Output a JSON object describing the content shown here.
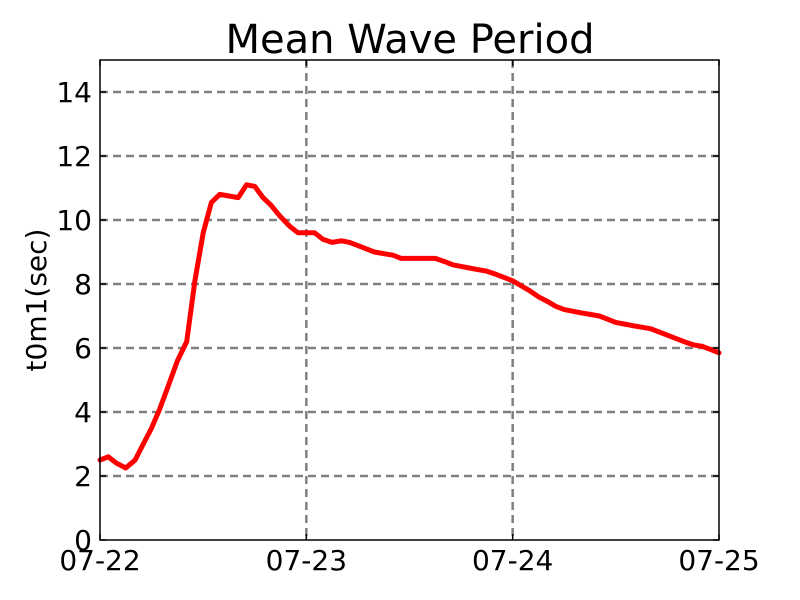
{
  "chart_data": {
    "type": "line",
    "title": "Mean Wave Period",
    "ylabel": "t0m1(sec)",
    "xlabel": "",
    "x_tick_labels": [
      "07-22",
      "07-23",
      "07-24",
      "07-25"
    ],
    "x_ticks": [
      0,
      1,
      2,
      3
    ],
    "y_tick_labels": [
      "0",
      "2",
      "4",
      "6",
      "8",
      "10",
      "12",
      "14"
    ],
    "y_ticks": [
      0,
      2,
      4,
      6,
      8,
      10,
      12,
      14
    ],
    "xlim": [
      0,
      3
    ],
    "ylim": [
      0,
      15
    ],
    "grid": true,
    "series": [
      {
        "color": "#ff0000",
        "x": [
          0.0,
          0.04,
          0.08,
          0.125,
          0.17,
          0.21,
          0.25,
          0.29,
          0.33,
          0.375,
          0.42,
          0.46,
          0.5,
          0.54,
          0.58,
          0.625,
          0.67,
          0.71,
          0.75,
          0.79,
          0.83,
          0.875,
          0.92,
          0.96,
          1.0,
          1.04,
          1.08,
          1.125,
          1.17,
          1.21,
          1.25,
          1.29,
          1.33,
          1.375,
          1.42,
          1.46,
          1.5,
          1.54,
          1.58,
          1.625,
          1.67,
          1.71,
          1.75,
          1.79,
          1.83,
          1.875,
          1.92,
          1.96,
          2.0,
          2.04,
          2.08,
          2.125,
          2.17,
          2.21,
          2.25,
          2.29,
          2.33,
          2.375,
          2.42,
          2.46,
          2.5,
          2.54,
          2.58,
          2.625,
          2.67,
          2.71,
          2.75,
          2.79,
          2.83,
          2.875,
          2.92,
          2.96,
          3.0
        ],
        "y": [
          2.5,
          2.6,
          2.4,
          2.25,
          2.5,
          3.0,
          3.5,
          4.1,
          4.8,
          5.6,
          6.2,
          8.1,
          9.6,
          10.55,
          10.8,
          10.75,
          10.7,
          11.1,
          11.05,
          10.7,
          10.45,
          10.1,
          9.8,
          9.6,
          9.6,
          9.6,
          9.4,
          9.3,
          9.35,
          9.3,
          9.2,
          9.1,
          9.0,
          8.95,
          8.9,
          8.8,
          8.8,
          8.8,
          8.8,
          8.8,
          8.7,
          8.6,
          8.55,
          8.5,
          8.45,
          8.4,
          8.3,
          8.2,
          8.1,
          7.95,
          7.8,
          7.6,
          7.45,
          7.3,
          7.2,
          7.15,
          7.1,
          7.05,
          7.0,
          6.9,
          6.8,
          6.75,
          6.7,
          6.65,
          6.6,
          6.5,
          6.4,
          6.3,
          6.2,
          6.1,
          6.05,
          5.95,
          5.85
        ]
      }
    ]
  }
}
